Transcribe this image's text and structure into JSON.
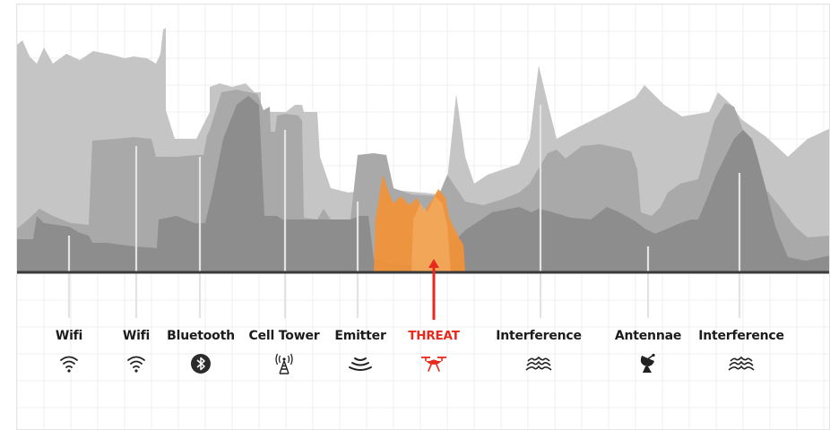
{
  "colors": {
    "background": "#ffffff",
    "grid": "#efefef",
    "layer_light": "#c4c4c4",
    "layer_mid": "#a9a9a9",
    "layer_dark": "#8c8c8c",
    "baseline": "#3a3a3a",
    "threat": "#f0923a",
    "threat_text": "#e8291c",
    "connector": "#e3e3e3"
  },
  "signals": [
    {
      "label": "Wifi",
      "icon": "wifi-icon",
      "threat": false
    },
    {
      "label": "Wifi",
      "icon": "wifi-icon",
      "threat": false
    },
    {
      "label": "Bluetooth",
      "icon": "bluetooth-icon",
      "threat": false
    },
    {
      "label": "Cell Tower",
      "icon": "cell-tower-icon",
      "threat": false
    },
    {
      "label": "Emitter",
      "icon": "emitter-waves-icon",
      "threat": false
    },
    {
      "label": "THREAT",
      "icon": "drone-icon",
      "threat": true
    },
    {
      "label": "Interference",
      "icon": "interference-waves-icon",
      "threat": false
    },
    {
      "label": "Antennae",
      "icon": "satellite-dish-icon",
      "threat": false
    },
    {
      "label": "Interference",
      "icon": "interference-waves-icon",
      "threat": false
    }
  ]
}
